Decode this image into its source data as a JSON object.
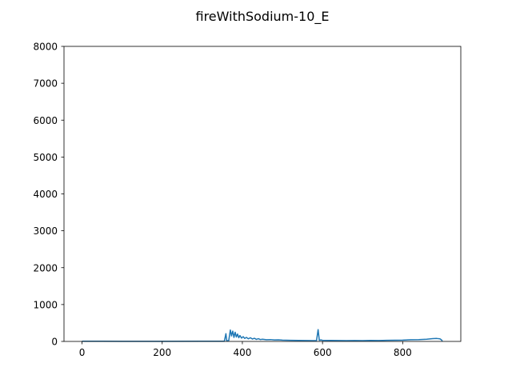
{
  "chart_data": {
    "type": "line",
    "title": "fireWithSodium-10_E",
    "xlabel": "",
    "ylabel": "",
    "xlim": [
      -45,
      945
    ],
    "ylim": [
      0,
      8000
    ],
    "xticks": [
      0,
      200,
      400,
      600,
      800
    ],
    "yticks": [
      0,
      1000,
      2000,
      3000,
      4000,
      5000,
      6000,
      7000,
      8000
    ],
    "grid": false,
    "legend": "none",
    "series": [
      {
        "color": "#1f77b4",
        "anchors": [
          [
            0,
            5
          ],
          [
            100,
            4
          ],
          [
            200,
            4
          ],
          [
            300,
            5
          ],
          [
            355,
            6
          ],
          [
            359,
            210
          ],
          [
            361,
            15
          ],
          [
            366,
            25
          ],
          [
            370,
            310
          ],
          [
            373,
            150
          ],
          [
            376,
            280
          ],
          [
            379,
            110
          ],
          [
            382,
            250
          ],
          [
            385,
            120
          ],
          [
            388,
            200
          ],
          [
            391,
            100
          ],
          [
            394,
            160
          ],
          [
            398,
            90
          ],
          [
            402,
            130
          ],
          [
            406,
            80
          ],
          [
            410,
            110
          ],
          [
            415,
            70
          ],
          [
            420,
            100
          ],
          [
            425,
            65
          ],
          [
            430,
            85
          ],
          [
            435,
            55
          ],
          [
            440,
            75
          ],
          [
            445,
            50
          ],
          [
            450,
            60
          ],
          [
            460,
            45
          ],
          [
            470,
            50
          ],
          [
            480,
            40
          ],
          [
            490,
            42
          ],
          [
            500,
            35
          ],
          [
            520,
            30
          ],
          [
            540,
            28
          ],
          [
            560,
            25
          ],
          [
            575,
            22
          ],
          [
            585,
            25
          ],
          [
            589,
            320
          ],
          [
            592,
            30
          ],
          [
            596,
            40
          ],
          [
            600,
            30
          ],
          [
            620,
            28
          ],
          [
            640,
            25
          ],
          [
            660,
            22
          ],
          [
            680,
            25
          ],
          [
            700,
            22
          ],
          [
            720,
            28
          ],
          [
            740,
            25
          ],
          [
            760,
            30
          ],
          [
            780,
            32
          ],
          [
            800,
            35
          ],
          [
            820,
            45
          ],
          [
            840,
            50
          ],
          [
            860,
            60
          ],
          [
            875,
            75
          ],
          [
            885,
            80
          ],
          [
            893,
            70
          ],
          [
            897,
            40
          ],
          [
            899,
            10
          ]
        ]
      }
    ]
  }
}
